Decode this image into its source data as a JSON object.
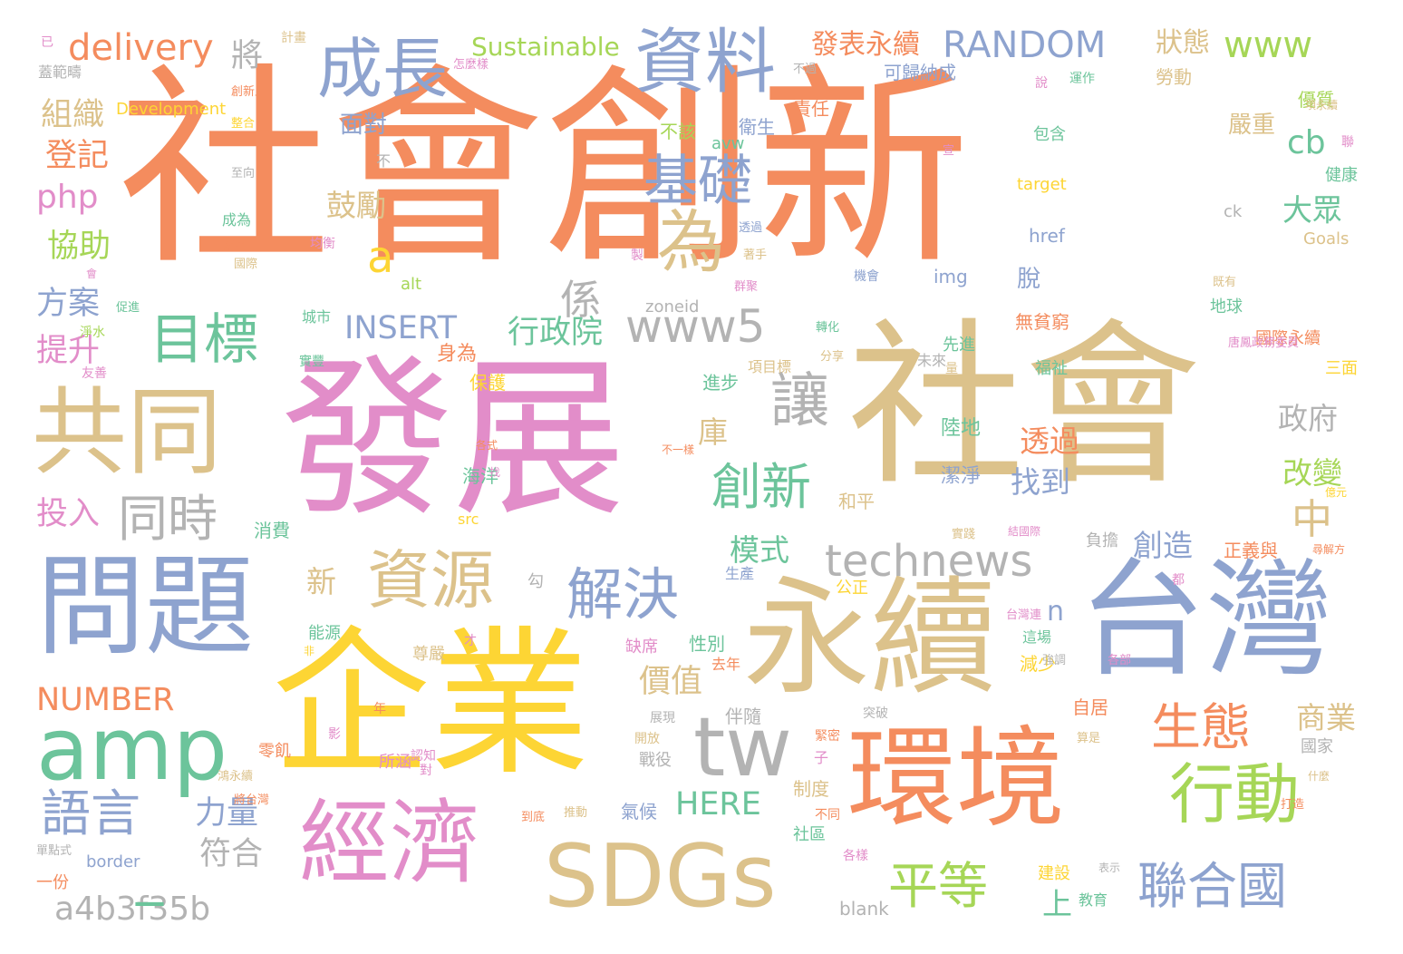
{
  "palette": {
    "orange": "#f48c5e",
    "tan": "#dcc28b",
    "blue": "#8ea3cf",
    "pink": "#e28dc9",
    "green": "#6cc49b",
    "yellow": "#fdd534",
    "gray": "#b3b3b3",
    "lime": "#a6d657"
  },
  "words": [
    {
      "text": "社會創新",
      "color": "orange"
    },
    {
      "text": "發展",
      "color": "pink"
    },
    {
      "text": "社會",
      "color": "tan"
    },
    {
      "text": "企業",
      "color": "yellow"
    },
    {
      "text": "永續",
      "color": "tan"
    },
    {
      "text": "台灣",
      "color": "blue"
    },
    {
      "text": "問題",
      "color": "blue"
    },
    {
      "text": "環境",
      "color": "orange"
    },
    {
      "text": "共同",
      "color": "tan"
    },
    {
      "text": "經濟",
      "color": "pink"
    },
    {
      "text": "SDGs",
      "color": "tan"
    },
    {
      "text": "amp",
      "color": "green"
    },
    {
      "text": "tw",
      "color": "gray"
    },
    {
      "text": "資料",
      "color": "blue"
    },
    {
      "text": "成長",
      "color": "blue"
    },
    {
      "text": "行動",
      "color": "lime"
    },
    {
      "text": "資源",
      "color": "tan"
    },
    {
      "text": "解決",
      "color": "blue"
    },
    {
      "text": "為",
      "color": "tan"
    },
    {
      "text": "目標",
      "color": "green"
    },
    {
      "text": "基礎",
      "color": "blue"
    },
    {
      "text": "讓",
      "color": "gray"
    },
    {
      "text": "創新",
      "color": "green"
    },
    {
      "text": "同時",
      "color": "gray"
    },
    {
      "text": "technews",
      "color": "gray"
    },
    {
      "text": "www5",
      "color": "gray"
    },
    {
      "text": "生態",
      "color": "orange"
    },
    {
      "text": "語言",
      "color": "blue"
    },
    {
      "text": "平等",
      "color": "lime"
    },
    {
      "text": "聯合國",
      "color": "blue"
    },
    {
      "text": "a4b3f35b",
      "color": "gray"
    },
    {
      "text": "www",
      "color": "lime"
    },
    {
      "text": "RANDOM",
      "color": "blue"
    },
    {
      "text": "delivery",
      "color": "orange"
    },
    {
      "text": "NUMBER",
      "color": "orange"
    },
    {
      "text": "INSERT",
      "color": "blue"
    },
    {
      "text": "行政院",
      "color": "green"
    },
    {
      "text": "係",
      "color": "gray"
    },
    {
      "text": "中",
      "color": "tan"
    },
    {
      "text": "a",
      "color": "yellow"
    },
    {
      "text": "php",
      "color": "pink"
    },
    {
      "text": "cb",
      "color": "green"
    },
    {
      "text": "HERE",
      "color": "green"
    },
    {
      "text": "_",
      "color": "green"
    },
    {
      "text": "價值",
      "color": "tan"
    },
    {
      "text": "力量",
      "color": "blue"
    },
    {
      "text": "符合",
      "color": "gray"
    },
    {
      "text": "組織",
      "color": "tan"
    },
    {
      "text": "登記",
      "color": "orange"
    },
    {
      "text": "協助",
      "color": "lime"
    },
    {
      "text": "方案",
      "color": "blue"
    },
    {
      "text": "提升",
      "color": "pink"
    },
    {
      "text": "投入",
      "color": "pink"
    },
    {
      "text": "將",
      "color": "gray"
    },
    {
      "text": "發表永續",
      "color": "orange"
    },
    {
      "text": "Sustainable",
      "color": "lime"
    },
    {
      "text": "狀態",
      "color": "tan"
    },
    {
      "text": "鼓勵",
      "color": "tan"
    },
    {
      "text": "透過",
      "color": "orange"
    },
    {
      "text": "找到",
      "color": "blue"
    },
    {
      "text": "大眾",
      "color": "green"
    },
    {
      "text": "政府",
      "color": "gray"
    },
    {
      "text": "改變",
      "color": "lime"
    },
    {
      "text": "創造",
      "color": "blue"
    },
    {
      "text": "模式",
      "color": "green"
    },
    {
      "text": "商業",
      "color": "tan"
    },
    {
      "text": "庫",
      "color": "tan"
    },
    {
      "text": "新",
      "color": "tan"
    },
    {
      "text": "n",
      "color": "blue"
    },
    {
      "text": "上",
      "color": "green"
    },
    {
      "text": "面對",
      "color": "blue"
    },
    {
      "text": "嚴重",
      "color": "tan"
    },
    {
      "text": "Development",
      "color": "yellow"
    },
    {
      "text": "可歸納成",
      "color": "blue"
    },
    {
      "text": "優質",
      "color": "lime"
    },
    {
      "text": "勞動",
      "color": "tan"
    },
    {
      "text": "責任",
      "color": "orange"
    },
    {
      "text": "衛生",
      "color": "blue"
    },
    {
      "text": "不該",
      "color": "lime"
    },
    {
      "text": "avw",
      "color": "green"
    },
    {
      "text": "包含",
      "color": "green"
    },
    {
      "text": "健康",
      "color": "green"
    },
    {
      "text": "target",
      "color": "yellow"
    },
    {
      "text": "ck",
      "color": "gray"
    },
    {
      "text": "href",
      "color": "blue"
    },
    {
      "text": "Goals",
      "color": "tan"
    },
    {
      "text": "img",
      "color": "blue"
    },
    {
      "text": "alt",
      "color": "lime"
    },
    {
      "text": "zoneid",
      "color": "gray"
    },
    {
      "text": "脫",
      "color": "blue"
    },
    {
      "text": "無貧窮",
      "color": "orange"
    },
    {
      "text": "地球",
      "color": "green"
    },
    {
      "text": "國際永續",
      "color": "orange"
    },
    {
      "text": "先進",
      "color": "green"
    },
    {
      "text": "福祉",
      "color": "green"
    },
    {
      "text": "三面",
      "color": "yellow"
    },
    {
      "text": "身為",
      "color": "orange"
    },
    {
      "text": "保護",
      "color": "yellow"
    },
    {
      "text": "進步",
      "color": "green"
    },
    {
      "text": "陸地",
      "color": "green"
    },
    {
      "text": "潔淨",
      "color": "blue"
    },
    {
      "text": "海洋",
      "color": "green"
    },
    {
      "text": "消費",
      "color": "green"
    },
    {
      "text": "和平",
      "color": "tan"
    },
    {
      "text": "正義與",
      "color": "orange"
    },
    {
      "text": "負擔",
      "color": "gray"
    },
    {
      "text": "生產",
      "color": "blue"
    },
    {
      "text": "公正",
      "color": "yellow"
    },
    {
      "text": "缺席",
      "color": "pink"
    },
    {
      "text": "性別",
      "color": "green"
    },
    {
      "text": "去年",
      "color": "orange"
    },
    {
      "text": "減少",
      "color": "yellow"
    },
    {
      "text": "自居",
      "color": "orange"
    },
    {
      "text": "伴隨",
      "color": "gray"
    },
    {
      "text": "能源",
      "color": "green"
    },
    {
      "text": "尊嚴",
      "color": "tan"
    },
    {
      "text": "國家",
      "color": "gray"
    },
    {
      "text": "氣候",
      "color": "blue"
    },
    {
      "text": "制度",
      "color": "tan"
    },
    {
      "text": "戰役",
      "color": "gray"
    },
    {
      "text": "社區",
      "color": "green"
    },
    {
      "text": "建設",
      "color": "yellow"
    },
    {
      "text": "教育",
      "color": "green"
    },
    {
      "text": "blank",
      "color": "gray"
    },
    {
      "text": "border",
      "color": "blue"
    },
    {
      "text": "src",
      "color": "yellow"
    },
    {
      "text": "一份",
      "color": "orange"
    },
    {
      "text": "蓋範疇",
      "color": "gray"
    },
    {
      "text": "計畫",
      "color": "tan"
    },
    {
      "text": "已",
      "color": "pink"
    },
    {
      "text": "城市",
      "color": "green"
    },
    {
      "text": "淨水",
      "color": "lime"
    },
    {
      "text": "成為",
      "color": "green"
    },
    {
      "text": "產業",
      "color": "orange"
    },
    {
      "text": "均衡",
      "color": "pink"
    },
    {
      "text": "零飢",
      "color": "orange"
    },
    {
      "text": "所涵",
      "color": "pink"
    },
    {
      "text": "項目標",
      "color": "tan"
    },
    {
      "text": "機會",
      "color": "blue"
    },
    {
      "text": "各部",
      "color": "pink"
    },
    {
      "text": "台灣連",
      "color": "pink"
    },
    {
      "text": "這場",
      "color": "green"
    },
    {
      "text": "強調",
      "color": "gray"
    },
    {
      "text": "算是",
      "color": "tan"
    },
    {
      "text": "突破",
      "color": "gray"
    },
    {
      "text": "不過",
      "color": "gray"
    },
    {
      "text": "運作",
      "color": "green"
    },
    {
      "text": "項永續",
      "color": "tan"
    },
    {
      "text": "怎麼樣",
      "color": "pink"
    },
    {
      "text": "創新上",
      "color": "orange"
    },
    {
      "text": "整合",
      "color": "yellow"
    },
    {
      "text": "至向",
      "color": "gray"
    },
    {
      "text": "不",
      "color": "gray"
    },
    {
      "text": "透過",
      "color": "blue"
    },
    {
      "text": "著手",
      "color": "tan"
    },
    {
      "text": "群聚",
      "color": "pink"
    },
    {
      "text": "既有",
      "color": "tan"
    },
    {
      "text": "轉化",
      "color": "green"
    },
    {
      "text": "分享",
      "color": "tan"
    },
    {
      "text": "未來",
      "color": "gray"
    },
    {
      "text": "唐鳳政務委員",
      "color": "pink"
    },
    {
      "text": "各式",
      "color": "orange"
    },
    {
      "text": "不一樣",
      "color": "orange"
    },
    {
      "text": "找",
      "color": "pink"
    },
    {
      "text": "實踐",
      "color": "tan"
    },
    {
      "text": "結國際",
      "color": "pink"
    },
    {
      "text": "億元",
      "color": "yellow"
    },
    {
      "text": "尋解方",
      "color": "orange"
    },
    {
      "text": "實豐",
      "color": "green"
    },
    {
      "text": "友善",
      "color": "pink"
    },
    {
      "text": "促進",
      "color": "green"
    },
    {
      "text": "國際",
      "color": "tan"
    },
    {
      "text": "會",
      "color": "pink"
    },
    {
      "text": "才",
      "color": "pink"
    },
    {
      "text": "非",
      "color": "yellow"
    },
    {
      "text": "勾",
      "color": "gray"
    },
    {
      "text": "年",
      "color": "orange"
    },
    {
      "text": "認知",
      "color": "pink"
    },
    {
      "text": "對",
      "color": "pink"
    },
    {
      "text": "開放",
      "color": "tan"
    },
    {
      "text": "展現",
      "color": "gray"
    },
    {
      "text": "推動",
      "color": "tan"
    },
    {
      "text": "到底",
      "color": "orange"
    },
    {
      "text": "單點式",
      "color": "gray"
    },
    {
      "text": "將台灣",
      "color": "orange"
    },
    {
      "text": "鴻永續",
      "color": "tan"
    },
    {
      "text": "子",
      "color": "pink"
    },
    {
      "text": "緊密",
      "color": "orange"
    },
    {
      "text": "不同",
      "color": "orange"
    },
    {
      "text": "各樣",
      "color": "pink"
    },
    {
      "text": "表示",
      "color": "gray"
    },
    {
      "text": "打造",
      "color": "orange"
    },
    {
      "text": "什麼",
      "color": "tan"
    },
    {
      "text": "都",
      "color": "pink"
    },
    {
      "text": "影",
      "color": "pink"
    },
    {
      "text": "量",
      "color": "tan"
    },
    {
      "text": "說",
      "color": "pink"
    },
    {
      "text": "聯",
      "color": "pink"
    },
    {
      "text": "製",
      "color": "pink"
    },
    {
      "text": "宣",
      "color": "pink"
    }
  ]
}
